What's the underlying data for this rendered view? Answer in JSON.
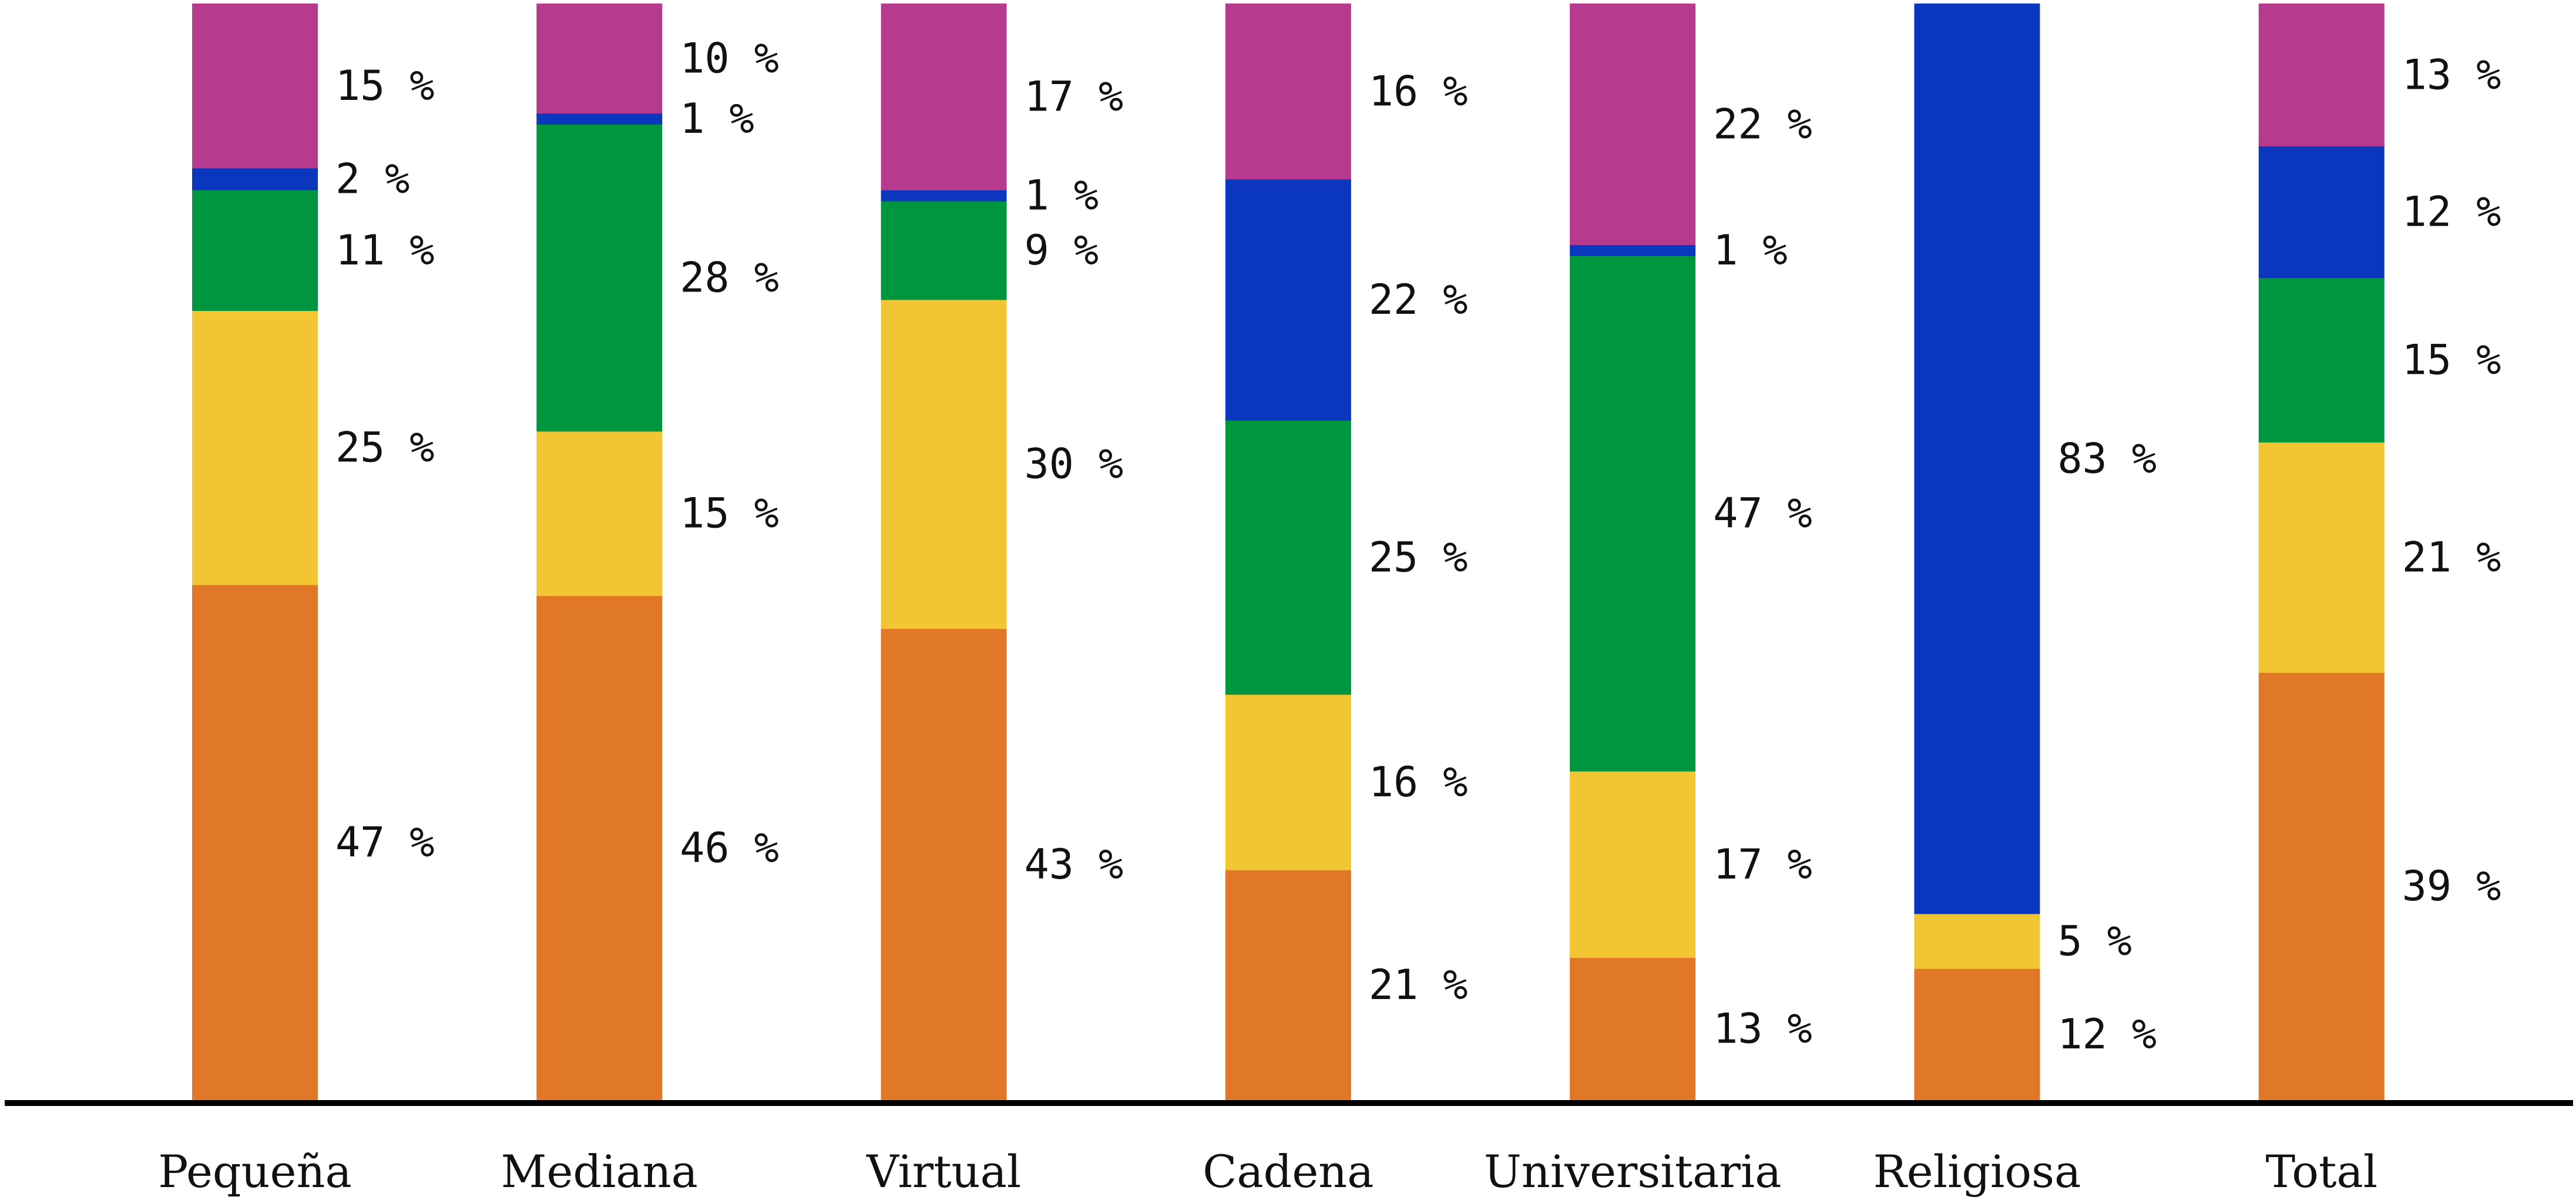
{
  "chart_data": {
    "type": "bar",
    "stacked": true,
    "normalized": true,
    "categories": [
      "Pequeña",
      "Mediana",
      "Virtual",
      "Cadena",
      "Universitaria",
      "Religiosa",
      "Total"
    ],
    "series": [
      {
        "color": "#E07828",
        "values": [
          47,
          46,
          43,
          21,
          13,
          12,
          39
        ],
        "labels": [
          "47 %",
          "46 %",
          "43 %",
          "21 %",
          "13 %",
          "12 %",
          "39 %"
        ]
      },
      {
        "color": "#F2C633",
        "values": [
          25,
          15,
          30,
          16,
          17,
          5,
          21
        ],
        "labels": [
          "25 %",
          "15 %",
          "30 %",
          "16 %",
          "17 %",
          "5 %",
          "21 %"
        ]
      },
      {
        "color": "#009640",
        "values": [
          11,
          28,
          9,
          25,
          47,
          0,
          15
        ],
        "labels": [
          "11 %",
          "28 %",
          "9 %",
          "25 %",
          "47 %",
          "",
          "15 %"
        ]
      },
      {
        "color": "#0A37BE",
        "values": [
          2,
          1,
          1,
          22,
          1,
          83,
          12
        ],
        "labels": [
          "2 %",
          "1 %",
          "1 %",
          "22 %",
          "1 %",
          "83 %",
          "12 %"
        ]
      },
      {
        "color": "#B63A8E",
        "values": [
          15,
          10,
          17,
          16,
          22,
          0,
          13
        ],
        "labels": [
          "15 %",
          "10 %",
          "17 %",
          "16 %",
          "22 %",
          "",
          "13 %"
        ]
      }
    ],
    "ylim": [
      0,
      100
    ],
    "grid": false,
    "legend": "none",
    "axis_color": "#000000"
  }
}
